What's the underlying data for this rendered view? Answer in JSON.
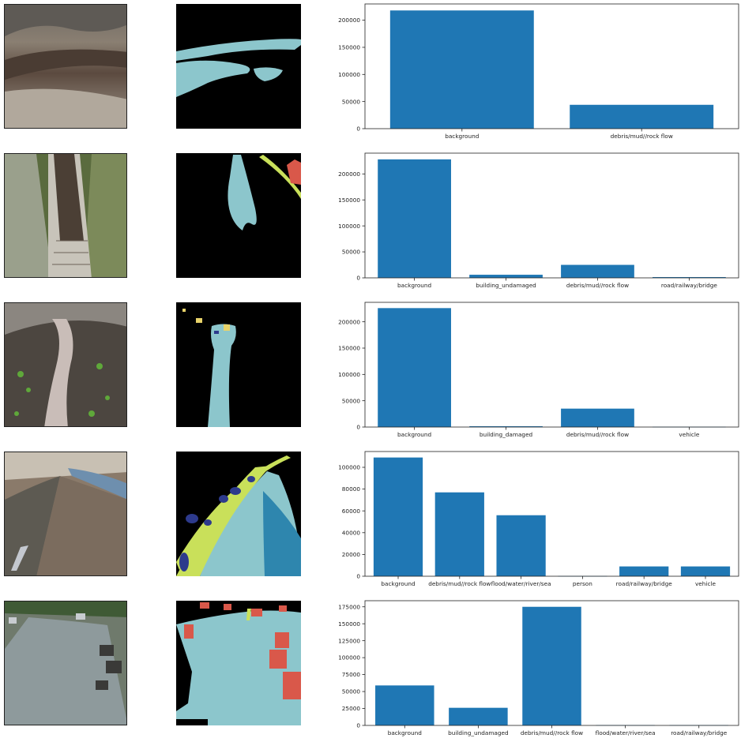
{
  "colors": {
    "bar": "#1f77b4",
    "mask_background": "#000000",
    "mask_debris": "#8cc6cc",
    "mask_water": "#2e86ae",
    "mask_building_undamaged": "#d9584a",
    "mask_road": "#c9e05a",
    "mask_vehicle": "#2d3a8c",
    "mask_building_damaged": "#e8d36a"
  },
  "rows": [
    {
      "photo_icon": "landslide-photo",
      "mask_icon": "segmentation-mask"
    },
    {
      "photo_icon": "canal-photo",
      "mask_icon": "segmentation-mask"
    },
    {
      "photo_icon": "valley-photo",
      "mask_icon": "segmentation-mask"
    },
    {
      "photo_icon": "flood-street-photo",
      "mask_icon": "segmentation-mask"
    },
    {
      "photo_icon": "village-mudflow-photo",
      "mask_icon": "segmentation-mask"
    }
  ],
  "chart_data": [
    {
      "type": "bar",
      "categories": [
        "background",
        "debris/mud//rock flow"
      ],
      "values": [
        218000,
        44000
      ],
      "ylim": [
        0,
        230000
      ],
      "yticks": [
        0,
        50000,
        100000,
        150000,
        200000
      ],
      "ytick_labels": [
        "0",
        "50000",
        "100000",
        "150000",
        "200000"
      ],
      "grid": false
    },
    {
      "type": "bar",
      "categories": [
        "background",
        "building_undamaged",
        "debris/mud//rock flow",
        "road/railway/bridge"
      ],
      "values": [
        228000,
        6000,
        25000,
        1500
      ],
      "ylim": [
        0,
        240000
      ],
      "yticks": [
        0,
        50000,
        100000,
        150000,
        200000
      ],
      "ytick_labels": [
        "0",
        "50000",
        "100000",
        "150000",
        "200000"
      ],
      "grid": false
    },
    {
      "type": "bar",
      "categories": [
        "background",
        "building_damaged",
        "debris/mud//rock flow",
        "vehicle"
      ],
      "values": [
        226000,
        1500,
        35000,
        500
      ],
      "ylim": [
        0,
        237000
      ],
      "yticks": [
        0,
        50000,
        100000,
        150000,
        200000
      ],
      "ytick_labels": [
        "0",
        "50000",
        "100000",
        "150000",
        "200000"
      ],
      "grid": false
    },
    {
      "type": "bar",
      "categories": [
        "background",
        "debris/mud//rock flow",
        "flood/water/river/sea",
        "person",
        "road/railway/bridge",
        "vehicle"
      ],
      "values": [
        109000,
        77000,
        56000,
        200,
        9000,
        9000
      ],
      "ylim": [
        0,
        114500
      ],
      "yticks": [
        0,
        20000,
        40000,
        60000,
        80000,
        100000
      ],
      "ytick_labels": [
        "0",
        "20000",
        "40000",
        "60000",
        "80000",
        "100000"
      ],
      "grid": false
    },
    {
      "type": "bar",
      "categories": [
        "background",
        "building_undamaged",
        "debris/mud//rock flow",
        "flood/water/river/sea",
        "road/railway/bridge"
      ],
      "values": [
        59000,
        26000,
        175000,
        500,
        500
      ],
      "ylim": [
        0,
        184000
      ],
      "yticks": [
        0,
        25000,
        50000,
        75000,
        100000,
        125000,
        150000,
        175000
      ],
      "ytick_labels": [
        "0",
        "25000",
        "50000",
        "75000",
        "100000",
        "125000",
        "150000",
        "175000"
      ],
      "grid": false
    }
  ]
}
